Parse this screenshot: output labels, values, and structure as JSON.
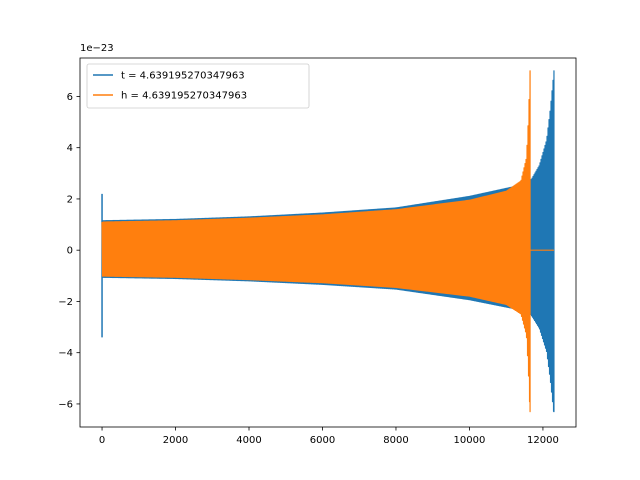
{
  "chart_data": {
    "type": "line",
    "title": "",
    "xlabel": "",
    "ylabel": "",
    "y_offset_label": "1e−23",
    "xlim": [
      -600,
      12900
    ],
    "ylim": [
      -6.9,
      7.5
    ],
    "x_ticks": [
      0,
      2000,
      4000,
      6000,
      8000,
      10000,
      12000
    ],
    "x_tick_labels": [
      "0",
      "2000",
      "4000",
      "6000",
      "8000",
      "10000",
      "12000"
    ],
    "y_ticks": [
      -6,
      -4,
      -2,
      0,
      2,
      4,
      6
    ],
    "y_tick_labels": [
      "−6",
      "−4",
      "−2",
      "0",
      "2",
      "4",
      "6"
    ],
    "grid": false,
    "legend_position": "upper-left",
    "series": [
      {
        "name": "t = 4.639195270347963",
        "color": "#1f77b4",
        "x_start": 0,
        "x_merger": 12300,
        "x_end": 12300,
        "initial_spike": {
          "x": 0,
          "min": -3.4,
          "max": 2.2
        },
        "envelope": {
          "x": [
            0,
            2000,
            4000,
            6000,
            8000,
            10000,
            11600,
            11700,
            11900,
            12100,
            12200,
            12300
          ],
          "amp": [
            1.15,
            1.2,
            1.3,
            1.45,
            1.65,
            2.1,
            2.6,
            2.8,
            3.3,
            4.3,
            5.5,
            7.0
          ]
        },
        "peak": {
          "max": 7.0,
          "min": -6.3
        }
      },
      {
        "name": "h = 4.639195270347963",
        "color": "#ff7f0e",
        "x_start": 0,
        "x_merger": 11650,
        "x_end": 12300,
        "envelope": {
          "x": [
            0,
            2000,
            4000,
            6000,
            8000,
            10000,
            11000,
            11400,
            11550,
            11600,
            11650
          ],
          "amp": [
            1.1,
            1.15,
            1.25,
            1.38,
            1.58,
            1.95,
            2.3,
            2.7,
            3.6,
            5.0,
            7.0
          ]
        },
        "peak": {
          "max": 7.0,
          "min": -6.3
        }
      }
    ]
  }
}
